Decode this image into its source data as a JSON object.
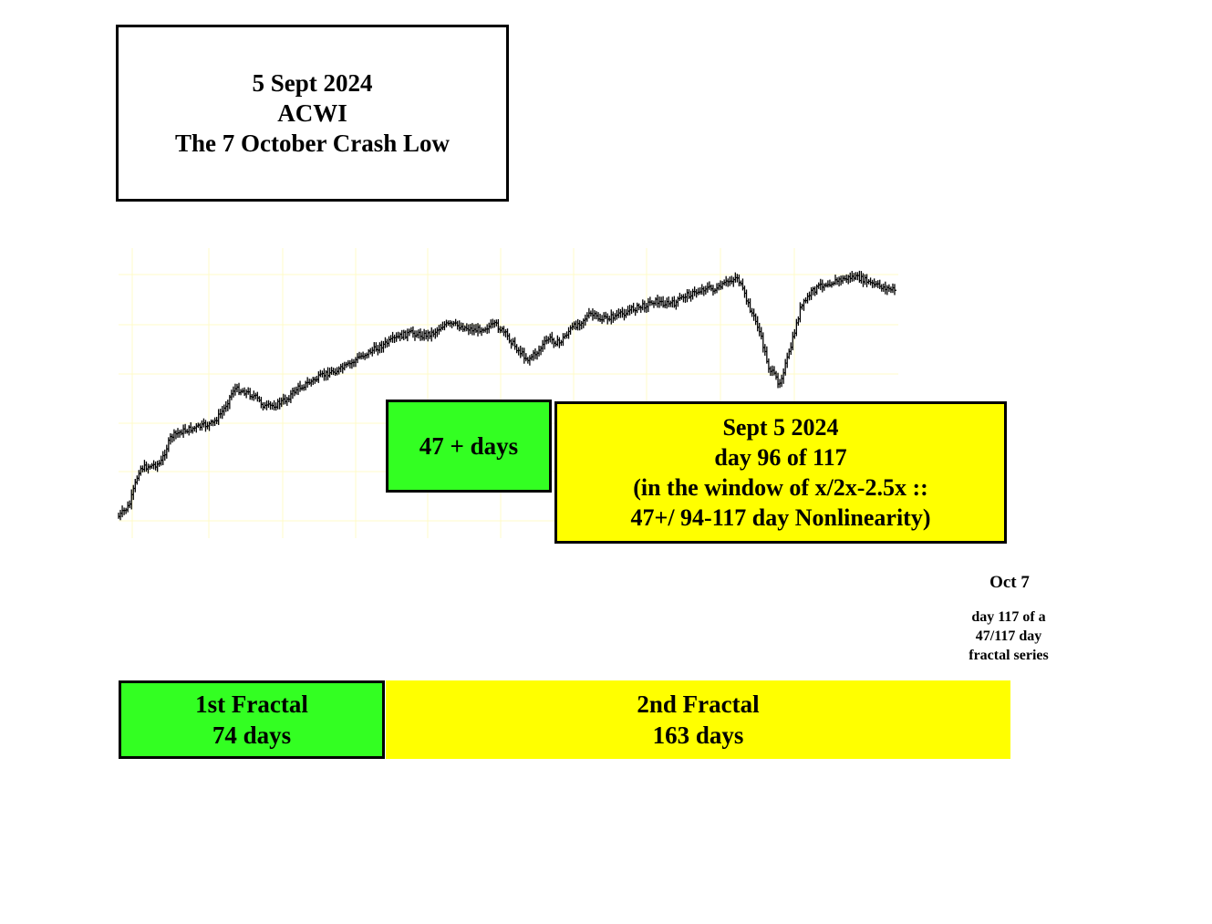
{
  "title_box": {
    "line1": "5 Sept 2024",
    "line2": "ACWI",
    "line3": "The 7 October Crash Low"
  },
  "green_box": {
    "text": "47 + days"
  },
  "yellow_box": {
    "line1": "Sept 5  2024",
    "line2": "day 96 of  117",
    "line3": "(in the window of x/2x-2.5x ::",
    "line4": "47+/ 94-117 day  Nonlinearity)"
  },
  "oct_label": "Oct 7",
  "oct_note": {
    "line1": "day 117 of a",
    "line2": "47/117 day",
    "line3": "fractal series"
  },
  "fractals": {
    "first": {
      "title": "1st Fractal",
      "days": "74 days"
    },
    "second": {
      "title": "2nd Fractal",
      "days": "163  days"
    }
  },
  "colors": {
    "green": "#33ff22",
    "yellow": "#ffff00",
    "grid": "#fffbc8",
    "bars": "#000000"
  },
  "chart_data": {
    "type": "ohlc",
    "title": "",
    "xlabel": "",
    "ylabel": "",
    "grid": true,
    "x": [
      0,
      4,
      8,
      12,
      16,
      20,
      24,
      28,
      32,
      36,
      40,
      44,
      48,
      52,
      56,
      60,
      64,
      68,
      72,
      76,
      80,
      84,
      88,
      92,
      96,
      100,
      104,
      108,
      112,
      116,
      120,
      124,
      128,
      132,
      136,
      140,
      144,
      148,
      152,
      156,
      160,
      164,
      168,
      172,
      176,
      180,
      184,
      188,
      192,
      196,
      200,
      204,
      208,
      212,
      216,
      220,
      224,
      228,
      232,
      236,
      240,
      244,
      248,
      252,
      256,
      260,
      264,
      268,
      272,
      276,
      280,
      284,
      288,
      292,
      296
    ],
    "close": [
      4,
      8,
      22,
      23,
      24,
      34,
      36,
      37,
      38,
      39,
      44,
      52,
      51,
      49,
      45,
      46,
      48,
      52,
      54,
      56,
      58,
      59,
      61,
      64,
      66,
      68,
      70,
      72,
      73,
      72,
      73,
      76,
      76,
      75,
      74,
      75,
      76,
      72,
      67,
      63,
      66,
      71,
      69,
      74,
      77,
      80,
      78,
      79,
      80,
      82,
      83,
      85,
      84,
      84,
      87,
      88,
      90,
      89,
      92,
      94,
      84,
      75,
      60,
      54,
      66,
      82,
      88,
      91,
      92,
      93,
      94,
      93,
      91,
      90,
      89
    ]
  }
}
